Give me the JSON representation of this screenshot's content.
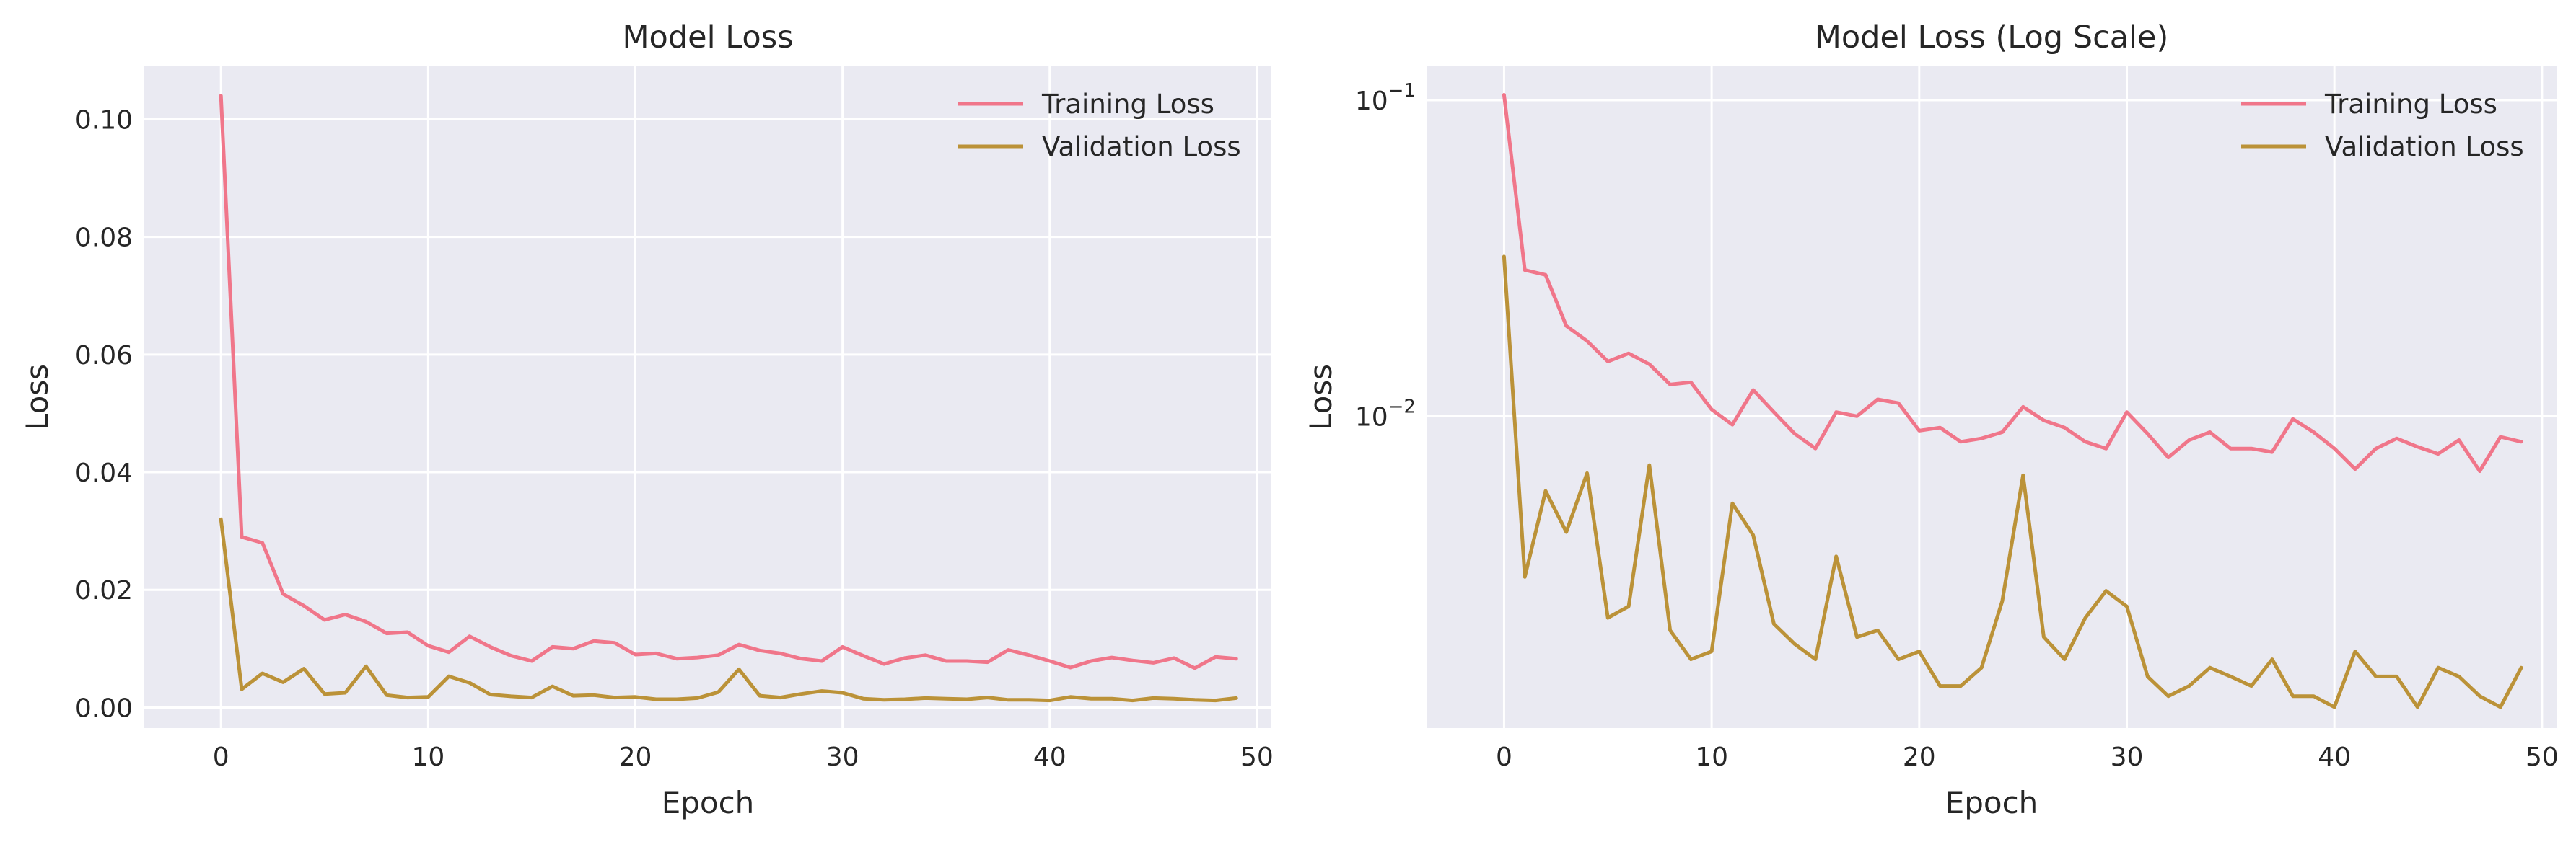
{
  "colors": {
    "training": "#f0768a",
    "validation": "#bb9238",
    "plot_background": "#eaeaf2",
    "grid": "#ffffff"
  },
  "chart_data": [
    {
      "type": "line",
      "title": "Model Loss",
      "xlabel": "Epoch",
      "ylabel": "Loss",
      "scale": "linear",
      "grid": true,
      "legend": "top-right",
      "xlim": [
        -3.7,
        50.7
      ],
      "ylim": [
        -0.0035,
        0.109
      ],
      "xticks": [
        0,
        10,
        20,
        30,
        40,
        50
      ],
      "xtick_labels": [
        "0",
        "10",
        "20",
        "30",
        "40",
        "50"
      ],
      "yticks": [
        0.0,
        0.02,
        0.04,
        0.06,
        0.08,
        0.1
      ],
      "ytick_labels": [
        "0.00",
        "0.02",
        "0.04",
        "0.06",
        "0.08",
        "0.10"
      ],
      "x": [
        0,
        1,
        2,
        3,
        4,
        5,
        6,
        7,
        8,
        9,
        10,
        11,
        12,
        13,
        14,
        15,
        16,
        17,
        18,
        19,
        20,
        21,
        22,
        23,
        24,
        25,
        26,
        27,
        28,
        29,
        30,
        31,
        32,
        33,
        34,
        35,
        36,
        37,
        38,
        39,
        40,
        41,
        42,
        43,
        44,
        45,
        46,
        47,
        48,
        49
      ],
      "series": [
        {
          "name": "Training Loss",
          "color_key": "training",
          "values": [
            0.104,
            0.029,
            0.028,
            0.0193,
            0.0173,
            0.0149,
            0.0158,
            0.0146,
            0.0126,
            0.0128,
            0.0105,
            0.0094,
            0.0121,
            0.0103,
            0.0088,
            0.0079,
            0.0103,
            0.01,
            0.0113,
            0.011,
            0.009,
            0.0092,
            0.0083,
            0.0085,
            0.0089,
            0.0107,
            0.0097,
            0.0092,
            0.0083,
            0.0079,
            0.0103,
            0.0088,
            0.0074,
            0.0084,
            0.0089,
            0.0079,
            0.0079,
            0.0077,
            0.0098,
            0.0089,
            0.0079,
            0.0068,
            0.0079,
            0.0085,
            0.008,
            0.0076,
            0.0084,
            0.0067,
            0.0086,
            0.0083
          ]
        },
        {
          "name": "Validation Loss",
          "color_key": "validation",
          "values": [
            0.032,
            0.0031,
            0.0058,
            0.0043,
            0.0066,
            0.0023,
            0.0025,
            0.007,
            0.0021,
            0.0017,
            0.0018,
            0.0053,
            0.0042,
            0.0022,
            0.0019,
            0.0017,
            0.0036,
            0.002,
            0.0021,
            0.0017,
            0.0018,
            0.0014,
            0.0014,
            0.0016,
            0.0026,
            0.0065,
            0.002,
            0.0017,
            0.0023,
            0.0028,
            0.0025,
            0.0015,
            0.0013,
            0.0014,
            0.0016,
            0.0015,
            0.0014,
            0.0017,
            0.0013,
            0.0013,
            0.0012,
            0.0018,
            0.0015,
            0.0015,
            0.0012,
            0.0016,
            0.0015,
            0.0013,
            0.0012,
            0.0016
          ]
        }
      ]
    },
    {
      "type": "line",
      "title": "Model Loss (Log Scale)",
      "xlabel": "Epoch",
      "ylabel": "Loss",
      "scale": "log",
      "grid": true,
      "legend": "top-right",
      "xlim": [
        -3.7,
        50.7
      ],
      "ylim": [
        0.00103,
        0.128
      ],
      "xticks": [
        0,
        10,
        20,
        30,
        40,
        50
      ],
      "xtick_labels": [
        "0",
        "10",
        "20",
        "30",
        "40",
        "50"
      ],
      "yticks": [
        0.01,
        0.1
      ],
      "ytick_bases": [
        "10",
        "10"
      ],
      "ytick_exponents": [
        "−2",
        "−1"
      ],
      "x": [
        0,
        1,
        2,
        3,
        4,
        5,
        6,
        7,
        8,
        9,
        10,
        11,
        12,
        13,
        14,
        15,
        16,
        17,
        18,
        19,
        20,
        21,
        22,
        23,
        24,
        25,
        26,
        27,
        28,
        29,
        30,
        31,
        32,
        33,
        34,
        35,
        36,
        37,
        38,
        39,
        40,
        41,
        42,
        43,
        44,
        45,
        46,
        47,
        48,
        49
      ],
      "series": [
        {
          "name": "Training Loss",
          "color_key": "training",
          "values": [
            0.104,
            0.029,
            0.028,
            0.0193,
            0.0173,
            0.0149,
            0.0158,
            0.0146,
            0.0126,
            0.0128,
            0.0105,
            0.0094,
            0.0121,
            0.0103,
            0.0088,
            0.0079,
            0.0103,
            0.01,
            0.0113,
            0.011,
            0.009,
            0.0092,
            0.0083,
            0.0085,
            0.0089,
            0.0107,
            0.0097,
            0.0092,
            0.0083,
            0.0079,
            0.0103,
            0.0088,
            0.0074,
            0.0084,
            0.0089,
            0.0079,
            0.0079,
            0.0077,
            0.0098,
            0.0089,
            0.0079,
            0.0068,
            0.0079,
            0.0085,
            0.008,
            0.0076,
            0.0084,
            0.0067,
            0.0086,
            0.0083
          ]
        },
        {
          "name": "Validation Loss",
          "color_key": "validation",
          "values": [
            0.032,
            0.0031,
            0.0058,
            0.0043,
            0.0066,
            0.0023,
            0.0025,
            0.007,
            0.0021,
            0.0017,
            0.0018,
            0.0053,
            0.0042,
            0.0022,
            0.0019,
            0.0017,
            0.0036,
            0.002,
            0.0021,
            0.0017,
            0.0018,
            0.0014,
            0.0014,
            0.0016,
            0.0026,
            0.0065,
            0.002,
            0.0017,
            0.0023,
            0.0028,
            0.0025,
            0.0015,
            0.0013,
            0.0014,
            0.0016,
            0.0015,
            0.0014,
            0.0017,
            0.0013,
            0.0013,
            0.0012,
            0.0018,
            0.0015,
            0.0015,
            0.0012,
            0.0016,
            0.0015,
            0.0013,
            0.0012,
            0.0016
          ]
        }
      ]
    }
  ]
}
